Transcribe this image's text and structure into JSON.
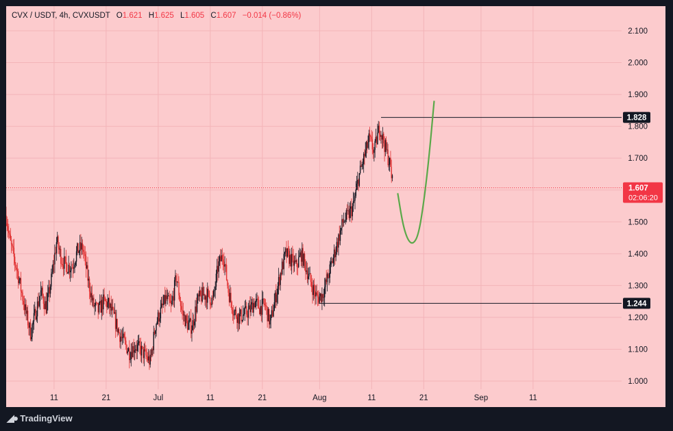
{
  "legend": {
    "symbol": "CVX / USDT, 4h, CVXUSDT",
    "o_label": "O",
    "o": "1.621",
    "h_label": "H",
    "h": "1.625",
    "l_label": "L",
    "l": "1.605",
    "c_label": "C",
    "c": "1.607",
    "change": "−0.014 (−0.86%)"
  },
  "branding": {
    "label": "TradingView"
  },
  "colors": {
    "background": "#fccbcd",
    "candle_up": "#131722",
    "candle_down": "#e03030",
    "price_line": "#f23645",
    "projection": "#5aa849",
    "frame": "#131722"
  },
  "chart_data": {
    "type": "candlestick",
    "ylim": [
      0.98,
      2.14
    ],
    "y_ticks": [
      "1.000",
      "1.100",
      "1.200",
      "1.300",
      "1.400",
      "1.500",
      "1.600",
      "1.700",
      "1.800",
      "1.900",
      "2.000",
      "2.100"
    ],
    "x_ticks": [
      {
        "day": 11,
        "label": "11"
      },
      {
        "day": 21,
        "label": "21"
      },
      {
        "day": 31,
        "label": "Jul"
      },
      {
        "day": 41,
        "label": "11"
      },
      {
        "day": 51,
        "label": "21"
      },
      {
        "day": 62,
        "label": "Aug"
      },
      {
        "day": 72,
        "label": "11"
      },
      {
        "day": 82,
        "label": "21"
      },
      {
        "day": 93,
        "label": "Sep"
      },
      {
        "day": 103,
        "label": "11"
      }
    ],
    "xlim": [
      1.8,
      120
    ],
    "price_path": [
      [
        1.8,
        1.52
      ],
      [
        2.5,
        1.44
      ],
      [
        4,
        1.34
      ],
      [
        5.5,
        1.22
      ],
      [
        6.5,
        1.15
      ],
      [
        7.5,
        1.22
      ],
      [
        8.5,
        1.28
      ],
      [
        9.5,
        1.23
      ],
      [
        10.5,
        1.32
      ],
      [
        11.5,
        1.44
      ],
      [
        12.5,
        1.38
      ],
      [
        13.5,
        1.36
      ],
      [
        14.5,
        1.36
      ],
      [
        15.5,
        1.41
      ],
      [
        16.5,
        1.42
      ],
      [
        17.5,
        1.32
      ],
      [
        18.5,
        1.24
      ],
      [
        19.5,
        1.22
      ],
      [
        20.5,
        1.25
      ],
      [
        21.5,
        1.24
      ],
      [
        22.5,
        1.2
      ],
      [
        23.5,
        1.15
      ],
      [
        24.5,
        1.12
      ],
      [
        25.5,
        1.09
      ],
      [
        26.5,
        1.11
      ],
      [
        27.5,
        1.1
      ],
      [
        28.5,
        1.08
      ],
      [
        29.5,
        1.06
      ],
      [
        30.5,
        1.18
      ],
      [
        31.5,
        1.22
      ],
      [
        32.5,
        1.26
      ],
      [
        33.5,
        1.23
      ],
      [
        34.5,
        1.33
      ],
      [
        35.5,
        1.22
      ],
      [
        36.5,
        1.18
      ],
      [
        37.5,
        1.17
      ],
      [
        38.5,
        1.25
      ],
      [
        39.5,
        1.27
      ],
      [
        40.5,
        1.27
      ],
      [
        41.5,
        1.25
      ],
      [
        42.5,
        1.36
      ],
      [
        43.5,
        1.4
      ],
      [
        44.5,
        1.28
      ],
      [
        45.5,
        1.22
      ],
      [
        46.5,
        1.2
      ],
      [
        47.5,
        1.21
      ],
      [
        48.5,
        1.22
      ],
      [
        49.5,
        1.25
      ],
      [
        50.5,
        1.23
      ],
      [
        51.5,
        1.24
      ],
      [
        52.5,
        1.18
      ],
      [
        53.5,
        1.26
      ],
      [
        54.5,
        1.34
      ],
      [
        55.5,
        1.4
      ],
      [
        56.5,
        1.38
      ],
      [
        57.5,
        1.36
      ],
      [
        58.5,
        1.4
      ],
      [
        59.5,
        1.35
      ],
      [
        60.5,
        1.3
      ],
      [
        61.5,
        1.26
      ],
      [
        62.5,
        1.27
      ],
      [
        63.5,
        1.32
      ],
      [
        64.5,
        1.38
      ],
      [
        65.5,
        1.44
      ],
      [
        66.5,
        1.5
      ],
      [
        67.5,
        1.52
      ],
      [
        68.5,
        1.55
      ],
      [
        69.5,
        1.64
      ],
      [
        70.5,
        1.7
      ],
      [
        71.5,
        1.76
      ],
      [
        72.5,
        1.72
      ],
      [
        73.5,
        1.8
      ],
      [
        74.5,
        1.74
      ],
      [
        75.5,
        1.68
      ],
      [
        76.1,
        1.61
      ]
    ],
    "last_price": 1.607,
    "last_price_label": "1.607",
    "countdown": "02:06:20",
    "levels": [
      {
        "value": 1.828,
        "label": "1.828",
        "x_start": 73.8
      },
      {
        "value": 1.244,
        "label": "1.244",
        "x_start": 61.8
      }
    ],
    "projection_path": [
      [
        77,
        1.59
      ],
      [
        78,
        1.49
      ],
      [
        79,
        1.44
      ],
      [
        80,
        1.43
      ],
      [
        81,
        1.46
      ],
      [
        82,
        1.56
      ],
      [
        83,
        1.7
      ],
      [
        84,
        1.88
      ]
    ]
  }
}
